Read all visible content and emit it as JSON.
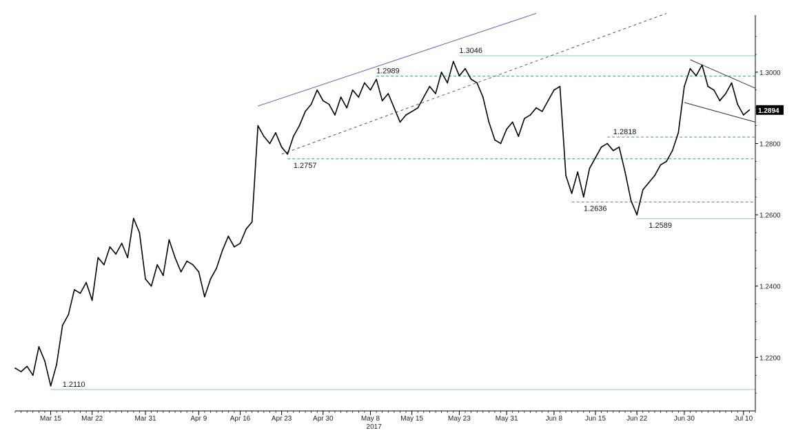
{
  "chart_data": {
    "type": "line",
    "title": "",
    "xlabel": "",
    "ylabel": "",
    "year_label": "2017",
    "ylim": [
      1.205,
      1.316
    ],
    "xlim": [
      0,
      125
    ],
    "grid": false,
    "y_ticks": [
      "1.2200",
      "1.2400",
      "1.2600",
      "1.2800",
      "1.3000"
    ],
    "x_ticks": [
      {
        "label": "Mar 15",
        "x": 6
      },
      {
        "label": "Mar 22",
        "x": 13
      },
      {
        "label": "Mar 31",
        "x": 22
      },
      {
        "label": "Apr 9",
        "x": 31
      },
      {
        "label": "Apr 16",
        "x": 38
      },
      {
        "label": "Apr 23",
        "x": 45
      },
      {
        "label": "Apr 30",
        "x": 52
      },
      {
        "label": "May 8",
        "x": 60
      },
      {
        "label": "May 15",
        "x": 67
      },
      {
        "label": "May 23",
        "x": 75
      },
      {
        "label": "May 31",
        "x": 83
      },
      {
        "label": "Jun 8",
        "x": 91
      },
      {
        "label": "Jun 15",
        "x": 98
      },
      {
        "label": "Jun 22",
        "x": 105
      },
      {
        "label": "Jun 30",
        "x": 113
      },
      {
        "label": "Jul 10",
        "x": 123
      }
    ],
    "series": [
      {
        "color": "#000000",
        "points": [
          [
            0,
            1.217
          ],
          [
            1,
            1.216
          ],
          [
            2,
            1.2175
          ],
          [
            3,
            1.215
          ],
          [
            4,
            1.223
          ],
          [
            5,
            1.219
          ],
          [
            6,
            1.212
          ],
          [
            7,
            1.218
          ],
          [
            8,
            1.229
          ],
          [
            9,
            1.232
          ],
          [
            10,
            1.239
          ],
          [
            11,
            1.238
          ],
          [
            12,
            1.241
          ],
          [
            13,
            1.236
          ],
          [
            14,
            1.248
          ],
          [
            15,
            1.246
          ],
          [
            16,
            1.251
          ],
          [
            17,
            1.249
          ],
          [
            18,
            1.252
          ],
          [
            19,
            1.248
          ],
          [
            20,
            1.259
          ],
          [
            21,
            1.255
          ],
          [
            22,
            1.242
          ],
          [
            23,
            1.24
          ],
          [
            24,
            1.246
          ],
          [
            25,
            1.243
          ],
          [
            26,
            1.253
          ],
          [
            27,
            1.248
          ],
          [
            28,
            1.244
          ],
          [
            29,
            1.247
          ],
          [
            30,
            1.246
          ],
          [
            31,
            1.244
          ],
          [
            32,
            1.237
          ],
          [
            33,
            1.242
          ],
          [
            34,
            1.245
          ],
          [
            35,
            1.25
          ],
          [
            36,
            1.254
          ],
          [
            37,
            1.251
          ],
          [
            38,
            1.252
          ],
          [
            39,
            1.256
          ],
          [
            40,
            1.258
          ],
          [
            41,
            1.285
          ],
          [
            42,
            1.282
          ],
          [
            43,
            1.28
          ],
          [
            44,
            1.283
          ],
          [
            45,
            1.279
          ],
          [
            46,
            1.277
          ],
          [
            47,
            1.282
          ],
          [
            48,
            1.285
          ],
          [
            49,
            1.289
          ],
          [
            50,
            1.291
          ],
          [
            51,
            1.295
          ],
          [
            52,
            1.292
          ],
          [
            53,
            1.291
          ],
          [
            54,
            1.288
          ],
          [
            55,
            1.293
          ],
          [
            56,
            1.29
          ],
          [
            57,
            1.295
          ],
          [
            58,
            1.293
          ],
          [
            59,
            1.297
          ],
          [
            60,
            1.295
          ],
          [
            61,
            1.298
          ],
          [
            62,
            1.292
          ],
          [
            63,
            1.294
          ],
          [
            64,
            1.29
          ],
          [
            65,
            1.286
          ],
          [
            66,
            1.288
          ],
          [
            67,
            1.289
          ],
          [
            68,
            1.29
          ],
          [
            69,
            1.293
          ],
          [
            70,
            1.296
          ],
          [
            71,
            1.294
          ],
          [
            72,
            1.3
          ],
          [
            73,
            1.297
          ],
          [
            74,
            1.303
          ],
          [
            75,
            1.299
          ],
          [
            76,
            1.301
          ],
          [
            77,
            1.298
          ],
          [
            78,
            1.297
          ],
          [
            79,
            1.293
          ],
          [
            80,
            1.286
          ],
          [
            81,
            1.281
          ],
          [
            82,
            1.28
          ],
          [
            83,
            1.284
          ],
          [
            84,
            1.286
          ],
          [
            85,
            1.282
          ],
          [
            86,
            1.287
          ],
          [
            87,
            1.288
          ],
          [
            88,
            1.29
          ],
          [
            89,
            1.289
          ],
          [
            90,
            1.292
          ],
          [
            91,
            1.295
          ],
          [
            92,
            1.296
          ],
          [
            93,
            1.271
          ],
          [
            94,
            1.266
          ],
          [
            95,
            1.272
          ],
          [
            96,
            1.265
          ],
          [
            97,
            1.273
          ],
          [
            98,
            1.276
          ],
          [
            99,
            1.279
          ],
          [
            100,
            1.28
          ],
          [
            101,
            1.278
          ],
          [
            102,
            1.279
          ],
          [
            103,
            1.272
          ],
          [
            104,
            1.264
          ],
          [
            105,
            1.26
          ],
          [
            106,
            1.267
          ],
          [
            107,
            1.269
          ],
          [
            108,
            1.271
          ],
          [
            109,
            1.274
          ],
          [
            110,
            1.275
          ],
          [
            111,
            1.278
          ],
          [
            112,
            1.283
          ],
          [
            113,
            1.296
          ],
          [
            114,
            1.301
          ],
          [
            115,
            1.299
          ],
          [
            116,
            1.302
          ],
          [
            117,
            1.296
          ],
          [
            118,
            1.295
          ],
          [
            119,
            1.292
          ],
          [
            120,
            1.294
          ],
          [
            121,
            1.297
          ],
          [
            122,
            1.291
          ],
          [
            123,
            1.288
          ],
          [
            124,
            1.2894
          ]
        ]
      }
    ],
    "last_price": {
      "value": 1.2894,
      "label": "1.2894",
      "bg_color": "#000000"
    },
    "levels": [
      {
        "value": 1.3046,
        "style": "solid",
        "color": "#7ecfc0",
        "x_start": 75,
        "x_end": 125
      },
      {
        "value": 1.2989,
        "style": "dashed",
        "color": "#3a9a7a",
        "x_start": 61,
        "x_end": 125
      },
      {
        "value": 1.2818,
        "style": "dashed",
        "color": "#3a9a7a",
        "x_start": 100,
        "x_end": 125
      },
      {
        "value": 1.2757,
        "style": "dashed",
        "color": "#3a9a7a",
        "x_start": 46,
        "x_end": 125
      },
      {
        "value": 1.2636,
        "style": "dashed",
        "color": "#3a9a7a",
        "x_start": 94,
        "x_end": 125
      },
      {
        "value": 1.2589,
        "style": "solid",
        "color": "#7ecfc0",
        "x_start": 105,
        "x_end": 125
      },
      {
        "value": 1.211,
        "style": "solid",
        "color": "#7ecfc0",
        "x_start": 6,
        "x_end": 125
      }
    ],
    "annotations": [
      {
        "text": "1.3046",
        "x": 75,
        "y": 1.3046,
        "pos": "above"
      },
      {
        "text": "1.2989",
        "x": 61,
        "y": 1.2989,
        "pos": "above"
      },
      {
        "text": "1.2818",
        "x": 101,
        "y": 1.2818,
        "pos": "above"
      },
      {
        "text": "1.2757",
        "x": 47,
        "y": 1.2757,
        "pos": "below"
      },
      {
        "text": "1.2636",
        "x": 96,
        "y": 1.2636,
        "pos": "below"
      },
      {
        "text": "1.2589",
        "x": 107,
        "y": 1.2589,
        "pos": "below"
      },
      {
        "text": "1.2110",
        "x": 8,
        "y": 1.211,
        "pos": "above"
      }
    ],
    "trendlines": [
      {
        "x1": 41,
        "y1": 1.2905,
        "x2": 88,
        "y2": 1.3165,
        "style": "solid",
        "color": "#6a5acd"
      },
      {
        "x1": 45,
        "y1": 1.277,
        "x2": 110,
        "y2": 1.3165,
        "style": "dashed",
        "color": "#555555"
      },
      {
        "x1": 114,
        "y1": 1.3035,
        "x2": 125,
        "y2": 1.2955,
        "style": "solid",
        "color": "#333333"
      },
      {
        "x1": 113,
        "y1": 1.2915,
        "x2": 125,
        "y2": 1.286,
        "style": "solid",
        "color": "#333333"
      }
    ]
  }
}
